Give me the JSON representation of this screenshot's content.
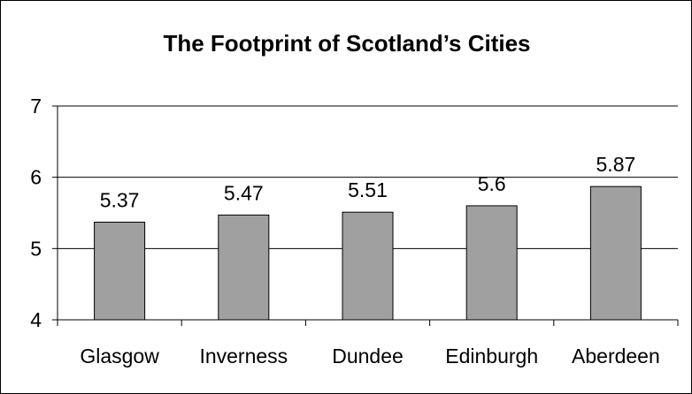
{
  "chart_data": {
    "type": "bar",
    "title": "The Footprint of Scotland’s Cities",
    "xlabel": "",
    "ylabel": "",
    "categories": [
      "Glasgow",
      "Inverness",
      "Dundee",
      "Edinburgh",
      "Aberdeen"
    ],
    "values": [
      5.37,
      5.47,
      5.51,
      5.6,
      5.87
    ],
    "data_labels": [
      "5.37",
      "5.47",
      "5.51",
      "5.6",
      "5.87"
    ],
    "ylim": [
      4,
      7
    ],
    "yticks": [
      4,
      5,
      6,
      7
    ],
    "grid": true,
    "legend": "none",
    "colors": {
      "bar_fill": "#a0a0a0",
      "bar_stroke": "#000000",
      "gridline": "#000000",
      "background": "#ffffff"
    }
  }
}
